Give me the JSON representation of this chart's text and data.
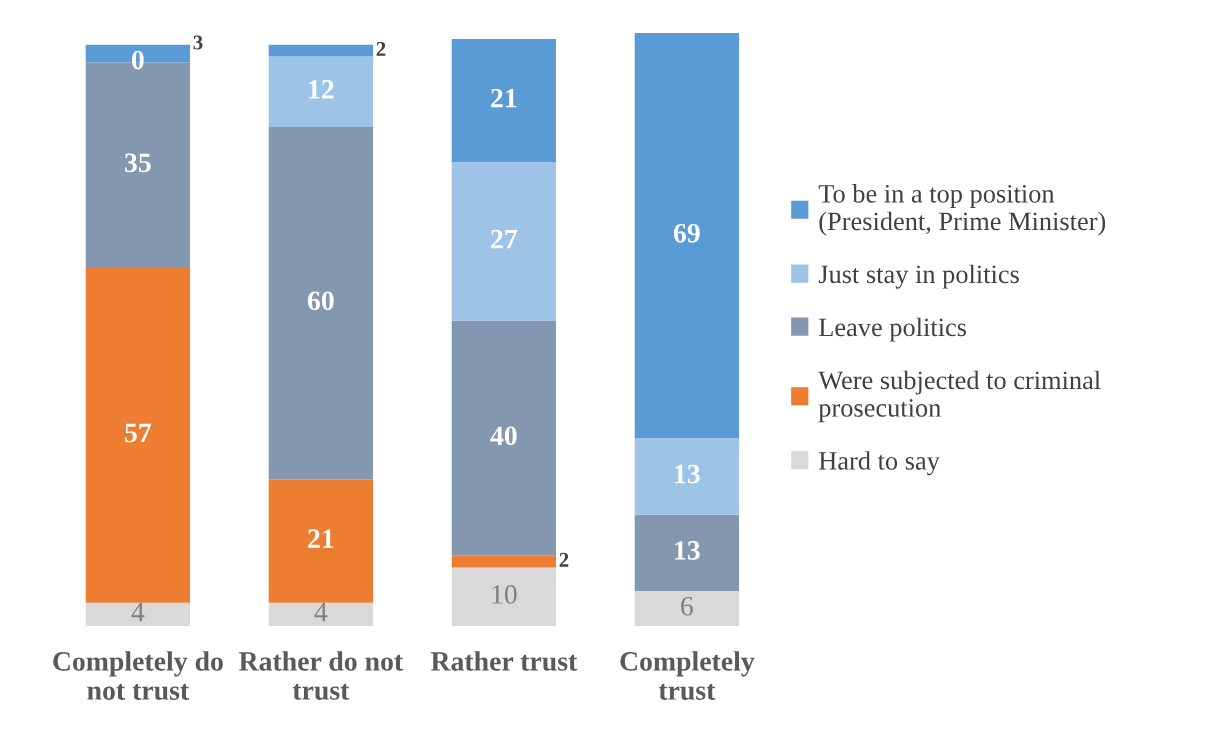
{
  "chart_data": {
    "type": "bar",
    "stacked": true,
    "categories": [
      "Completely do not trust",
      "Rather do not trust",
      "Rather trust",
      "Completely trust"
    ],
    "series": [
      {
        "name": "Hard to say",
        "color": "#d9d9d9",
        "values": [
          4,
          4,
          10,
          6
        ]
      },
      {
        "name": "Were subjected to criminal prosecution",
        "color": "#ed7d31",
        "values": [
          57,
          21,
          2,
          null
        ]
      },
      {
        "name": "Leave politics",
        "color": "#8497b0",
        "values": [
          35,
          60,
          40,
          13
        ]
      },
      {
        "name": "Just stay in politics",
        "color": "#9dc3e6",
        "values": [
          0,
          12,
          27,
          13
        ]
      },
      {
        "name": "To be in a top position (President, Prime Minister)",
        "color": "#5b9bd5",
        "values": [
          3,
          2,
          21,
          69
        ]
      }
    ],
    "data_labels": true,
    "legend": "right",
    "grid": false
  }
}
